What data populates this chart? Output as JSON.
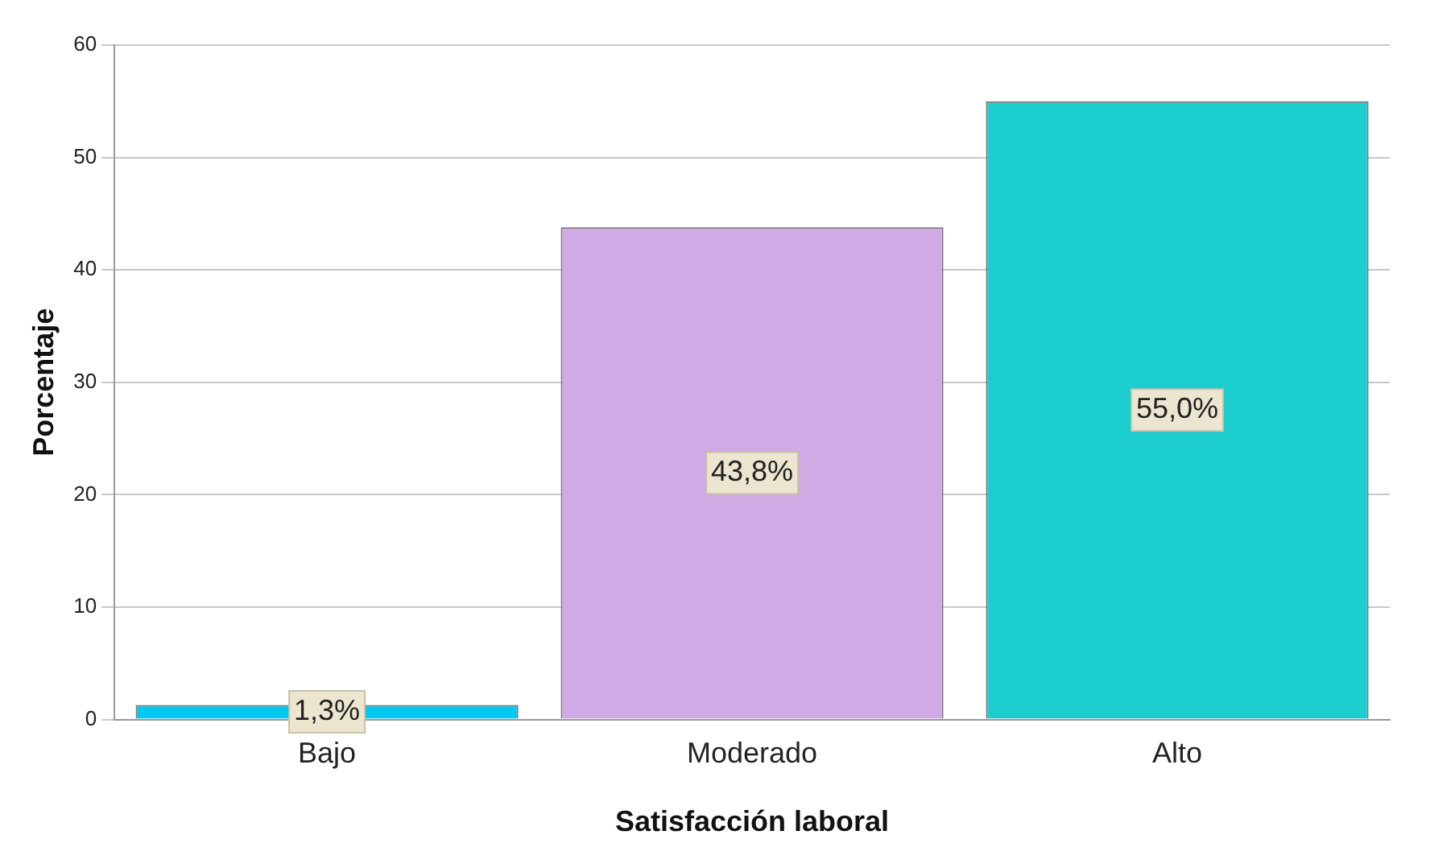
{
  "chart_data": {
    "type": "bar",
    "xlabel": "Satisfacción laboral",
    "ylabel": "Porcentaje",
    "categories": [
      "Bajo",
      "Moderado",
      "Alto"
    ],
    "values": [
      1.3,
      43.8,
      55.0
    ],
    "value_labels": [
      "1,3%",
      "43,8%",
      "55,0%"
    ],
    "colors": [
      "#00c8f0",
      "#d0aae4",
      "#1ccece"
    ],
    "ylim": [
      0,
      60
    ],
    "yticks": [
      0,
      10,
      20,
      30,
      40,
      50,
      60
    ],
    "grid": "y"
  }
}
